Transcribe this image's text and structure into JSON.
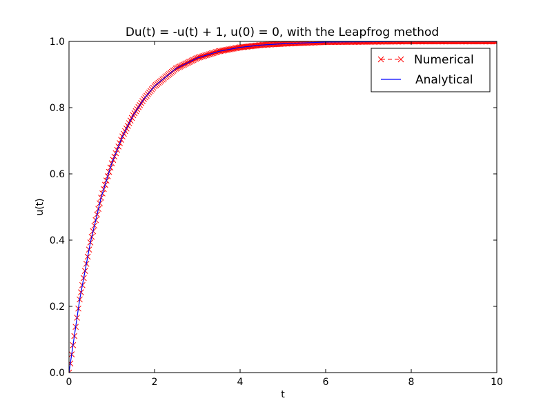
{
  "chart_data": {
    "type": "line",
    "title": "Du(t) = -u(t) + 1, u(0) = 0, with the Leapfrog method",
    "xlabel": "t",
    "ylabel": "u(t)",
    "xlim": [
      0,
      10
    ],
    "ylim": [
      0,
      1.0
    ],
    "xticks": [
      0,
      2,
      4,
      6,
      8,
      10
    ],
    "xtick_labels": [
      "0",
      "2",
      "4",
      "6",
      "8",
      "10"
    ],
    "yticks": [
      0,
      0.2,
      0.4,
      0.6,
      0.8,
      1.0
    ],
    "ytick_labels": [
      "0.0",
      "0.2",
      "0.4",
      "0.6",
      "0.8",
      "1.0"
    ],
    "grid": false,
    "legend_position": "top-right",
    "series": [
      {
        "name": "Numerical",
        "color": "#ff0000",
        "style": "dashed-x-markers",
        "x": [
          0,
          0.25,
          0.5,
          0.75,
          1.0,
          1.25,
          1.5,
          1.75,
          2.0,
          2.5,
          3.0,
          3.5,
          4.0,
          4.5,
          5.0,
          6.0,
          7.0,
          8.0,
          9.0,
          10.0
        ],
        "y": [
          0.0,
          0.221,
          0.393,
          0.528,
          0.632,
          0.713,
          0.777,
          0.826,
          0.865,
          0.918,
          0.95,
          0.97,
          0.982,
          0.989,
          0.993,
          0.998,
          0.999,
          1.0,
          1.0,
          1.0
        ]
      },
      {
        "name": "Analytical",
        "color": "#0000ff",
        "style": "solid",
        "x": [
          0,
          0.25,
          0.5,
          0.75,
          1.0,
          1.25,
          1.5,
          1.75,
          2.0,
          2.5,
          3.0,
          3.5,
          4.0,
          4.5,
          5.0,
          6.0,
          7.0,
          8.0,
          9.0,
          10.0
        ],
        "y": [
          0.0,
          0.221,
          0.393,
          0.528,
          0.632,
          0.713,
          0.777,
          0.826,
          0.865,
          0.918,
          0.95,
          0.97,
          0.982,
          0.989,
          0.993,
          0.998,
          0.999,
          1.0,
          1.0,
          1.0
        ]
      }
    ]
  }
}
